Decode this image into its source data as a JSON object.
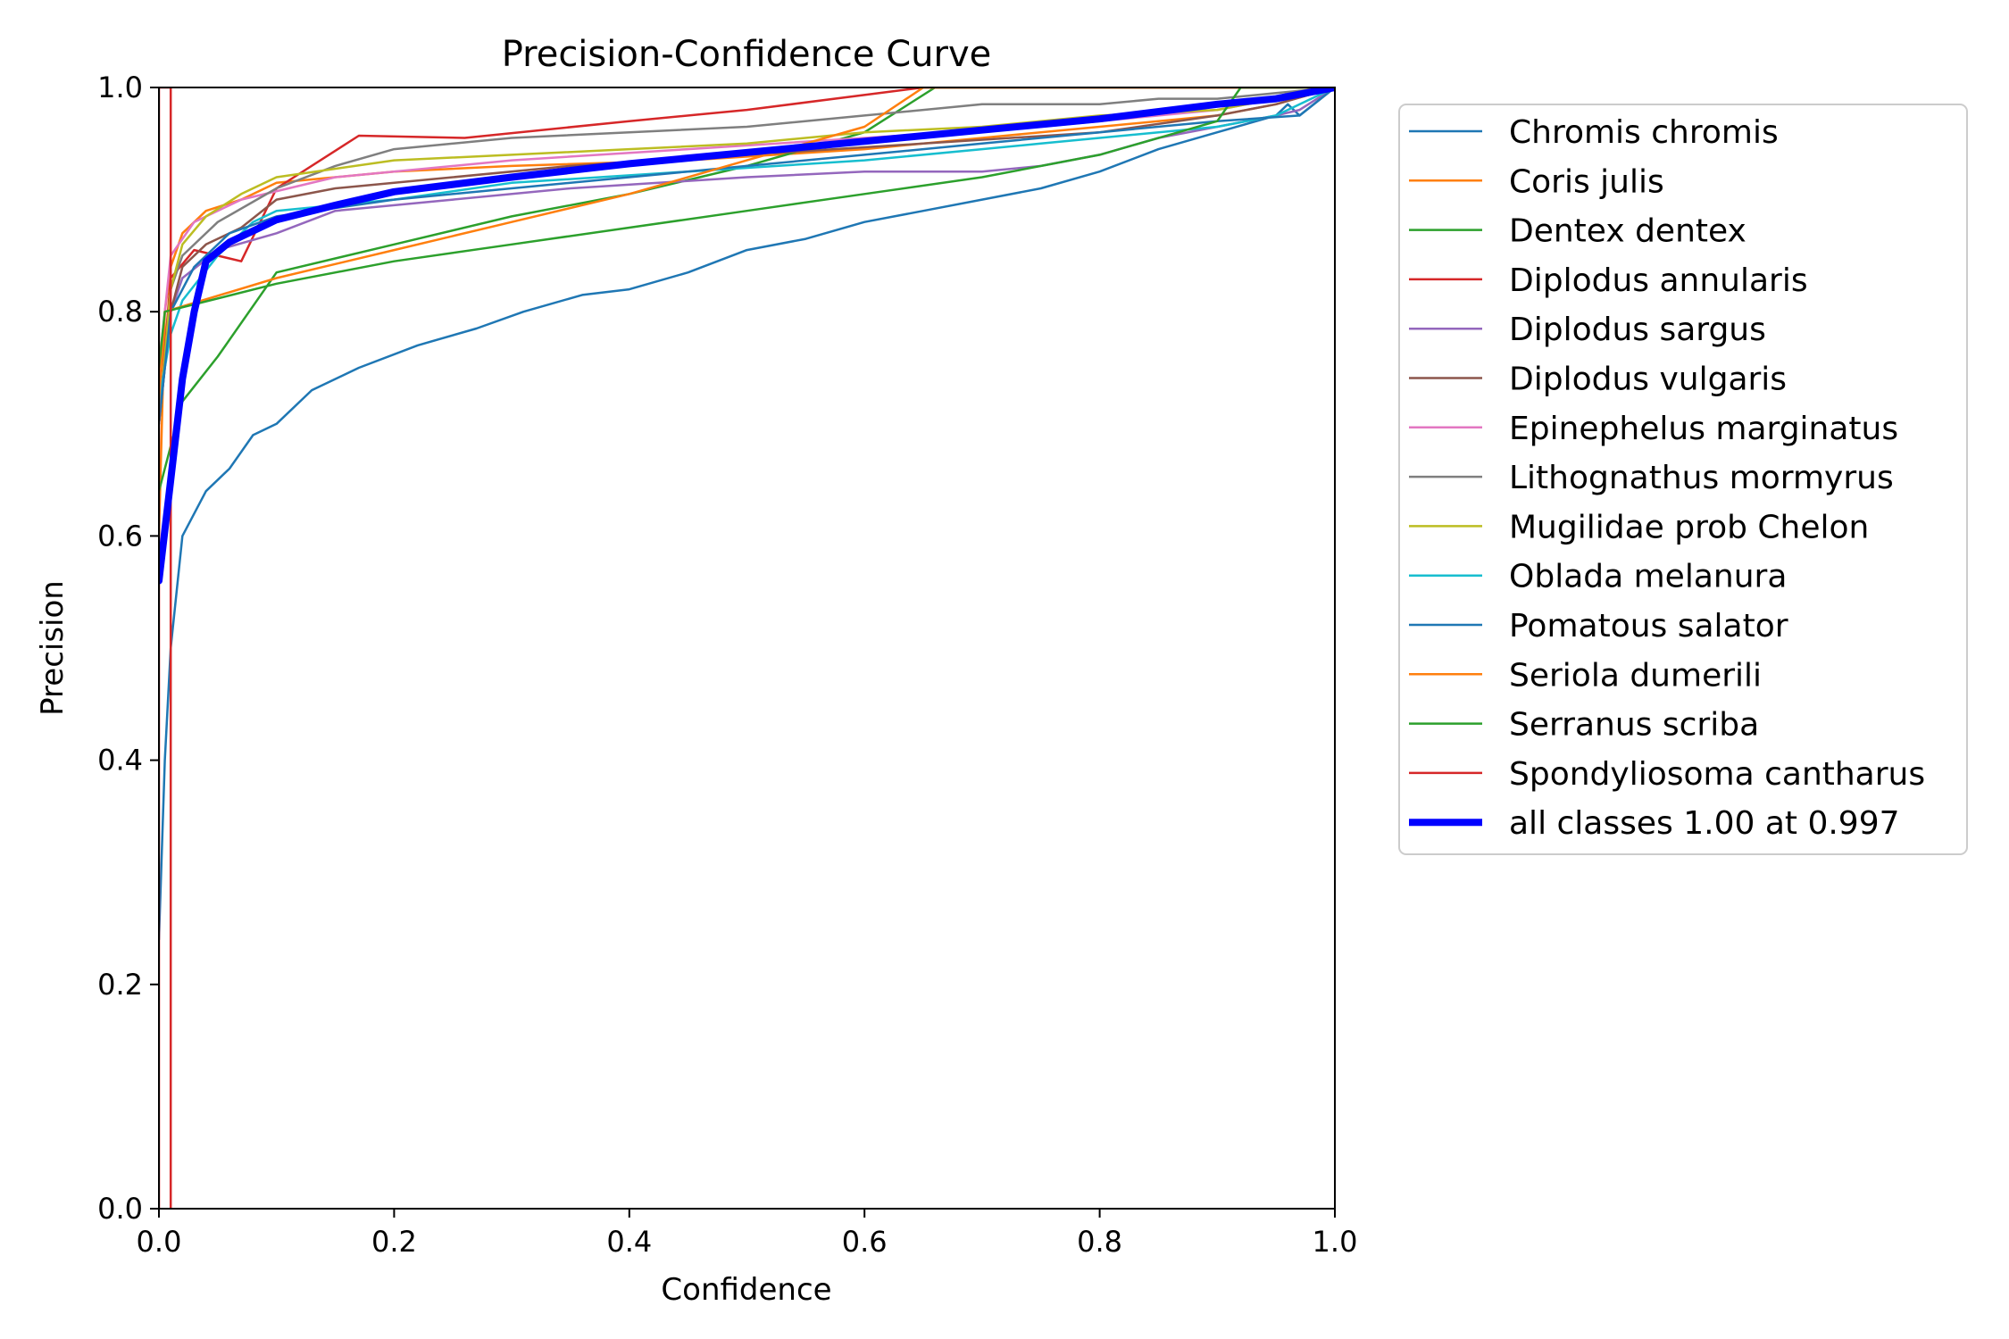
{
  "chart_data": {
    "type": "line",
    "title": "Precision-Confidence Curve",
    "xlabel": "Confidence",
    "ylabel": "Precision",
    "xlim": [
      0,
      1
    ],
    "ylim": [
      0,
      1
    ],
    "x_ticks": [
      "0.0",
      "0.2",
      "0.4",
      "0.6",
      "0.8",
      "1.0"
    ],
    "y_ticks": [
      "0.0",
      "0.2",
      "0.4",
      "0.6",
      "0.8",
      "1.0"
    ],
    "grid": false,
    "legend_position": "outside-right",
    "series": [
      {
        "name": "Chromis chromis",
        "color": "#1f77b4",
        "width": 2.5,
        "points": [
          [
            0.0,
            0.24
          ],
          [
            0.005,
            0.4
          ],
          [
            0.01,
            0.5
          ],
          [
            0.02,
            0.6
          ],
          [
            0.04,
            0.64
          ],
          [
            0.06,
            0.66
          ],
          [
            0.08,
            0.69
          ],
          [
            0.1,
            0.7
          ],
          [
            0.13,
            0.73
          ],
          [
            0.17,
            0.75
          ],
          [
            0.22,
            0.77
          ],
          [
            0.27,
            0.785
          ],
          [
            0.31,
            0.8
          ],
          [
            0.36,
            0.815
          ],
          [
            0.4,
            0.82
          ],
          [
            0.45,
            0.835
          ],
          [
            0.5,
            0.855
          ],
          [
            0.55,
            0.865
          ],
          [
            0.6,
            0.88
          ],
          [
            0.65,
            0.89
          ],
          [
            0.7,
            0.9
          ],
          [
            0.75,
            0.91
          ],
          [
            0.8,
            0.925
          ],
          [
            0.85,
            0.945
          ],
          [
            0.9,
            0.96
          ],
          [
            0.95,
            0.975
          ],
          [
            0.96,
            0.985
          ],
          [
            0.97,
            0.975
          ],
          [
            1.0,
            1.0
          ]
        ]
      },
      {
        "name": "Coris julis",
        "color": "#ff7f0e",
        "width": 2.5,
        "points": [
          [
            0.0,
            0.6
          ],
          [
            0.005,
            0.8
          ],
          [
            0.01,
            0.84
          ],
          [
            0.02,
            0.87
          ],
          [
            0.04,
            0.89
          ],
          [
            0.07,
            0.9
          ],
          [
            0.1,
            0.915
          ],
          [
            0.2,
            0.925
          ],
          [
            0.3,
            0.93
          ],
          [
            0.45,
            0.935
          ],
          [
            0.6,
            0.945
          ],
          [
            0.7,
            0.955
          ],
          [
            0.8,
            0.965
          ],
          [
            0.9,
            0.975
          ],
          [
            0.95,
            0.985
          ],
          [
            1.0,
            1.0
          ]
        ]
      },
      {
        "name": "Dentex dentex",
        "color": "#2ca02c",
        "width": 2.5,
        "points": [
          [
            0.0,
            0.64
          ],
          [
            0.02,
            0.72
          ],
          [
            0.05,
            0.76
          ],
          [
            0.1,
            0.835
          ],
          [
            0.2,
            0.86
          ],
          [
            0.3,
            0.885
          ],
          [
            0.4,
            0.905
          ],
          [
            0.5,
            0.93
          ],
          [
            0.6,
            0.96
          ],
          [
            0.66,
            1.0
          ],
          [
            1.0,
            1.0
          ]
        ]
      },
      {
        "name": "Diplodus annularis",
        "color": "#d62728",
        "width": 2.5,
        "points": [
          [
            0.0,
            0.7
          ],
          [
            0.01,
            0.83
          ],
          [
            0.03,
            0.855
          ],
          [
            0.07,
            0.845
          ],
          [
            0.1,
            0.91
          ],
          [
            0.17,
            0.957
          ],
          [
            0.26,
            0.955
          ],
          [
            0.4,
            0.97
          ],
          [
            0.5,
            0.98
          ],
          [
            0.65,
            1.0
          ],
          [
            1.0,
            1.0
          ]
        ]
      },
      {
        "name": "Diplodus sargus",
        "color": "#9467bd",
        "width": 2.5,
        "points": [
          [
            0.0,
            0.7
          ],
          [
            0.01,
            0.8
          ],
          [
            0.02,
            0.83
          ],
          [
            0.05,
            0.855
          ],
          [
            0.1,
            0.87
          ],
          [
            0.15,
            0.89
          ],
          [
            0.25,
            0.9
          ],
          [
            0.35,
            0.91
          ],
          [
            0.5,
            0.92
          ],
          [
            0.6,
            0.925
          ],
          [
            0.7,
            0.925
          ],
          [
            0.75,
            0.93
          ],
          [
            0.8,
            0.94
          ],
          [
            0.85,
            0.955
          ],
          [
            0.9,
            0.965
          ],
          [
            0.95,
            0.975
          ],
          [
            0.97,
            0.98
          ],
          [
            1.0,
            1.0
          ]
        ]
      },
      {
        "name": "Diplodus vulgaris",
        "color": "#8c564b",
        "width": 2.5,
        "points": [
          [
            0.0,
            0.7
          ],
          [
            0.01,
            0.8
          ],
          [
            0.02,
            0.84
          ],
          [
            0.04,
            0.86
          ],
          [
            0.07,
            0.875
          ],
          [
            0.1,
            0.9
          ],
          [
            0.15,
            0.91
          ],
          [
            0.25,
            0.92
          ],
          [
            0.35,
            0.93
          ],
          [
            0.5,
            0.94
          ],
          [
            0.65,
            0.95
          ],
          [
            0.8,
            0.96
          ],
          [
            0.9,
            0.975
          ],
          [
            0.95,
            0.985
          ],
          [
            1.0,
            1.0
          ]
        ]
      },
      {
        "name": "Epinephelus marginatus",
        "color": "#e377c2",
        "width": 2.5,
        "points": [
          [
            0.0,
            0.75
          ],
          [
            0.01,
            0.85
          ],
          [
            0.03,
            0.88
          ],
          [
            0.07,
            0.9
          ],
          [
            0.15,
            0.92
          ],
          [
            0.3,
            0.935
          ],
          [
            0.45,
            0.945
          ],
          [
            0.6,
            0.955
          ],
          [
            0.75,
            0.965
          ],
          [
            0.9,
            0.98
          ],
          [
            1.0,
            1.0
          ]
        ]
      },
      {
        "name": "Lithognathus mormyrus",
        "color": "#7f7f7f",
        "width": 2.5,
        "points": [
          [
            0.0,
            0.7
          ],
          [
            0.01,
            0.82
          ],
          [
            0.02,
            0.85
          ],
          [
            0.05,
            0.88
          ],
          [
            0.1,
            0.91
          ],
          [
            0.15,
            0.93
          ],
          [
            0.2,
            0.945
          ],
          [
            0.3,
            0.955
          ],
          [
            0.4,
            0.96
          ],
          [
            0.5,
            0.965
          ],
          [
            0.6,
            0.975
          ],
          [
            0.7,
            0.985
          ],
          [
            0.8,
            0.985
          ],
          [
            0.85,
            0.99
          ],
          [
            0.9,
            0.99
          ],
          [
            0.95,
            0.995
          ],
          [
            1.0,
            1.0
          ]
        ]
      },
      {
        "name": "Mugilidae prob Chelon",
        "color": "#bcbd22",
        "width": 2.5,
        "points": [
          [
            0.0,
            0.7
          ],
          [
            0.01,
            0.82
          ],
          [
            0.02,
            0.86
          ],
          [
            0.04,
            0.885
          ],
          [
            0.07,
            0.905
          ],
          [
            0.1,
            0.92
          ],
          [
            0.2,
            0.935
          ],
          [
            0.3,
            0.94
          ],
          [
            0.4,
            0.945
          ],
          [
            0.5,
            0.95
          ],
          [
            0.6,
            0.96
          ],
          [
            0.7,
            0.965
          ],
          [
            0.8,
            0.975
          ],
          [
            0.9,
            0.98
          ],
          [
            0.95,
            0.99
          ],
          [
            1.0,
            1.0
          ]
        ]
      },
      {
        "name": "Oblada melanura",
        "color": "#17becf",
        "width": 2.5,
        "points": [
          [
            0.0,
            0.72
          ],
          [
            0.01,
            0.78
          ],
          [
            0.02,
            0.81
          ],
          [
            0.05,
            0.85
          ],
          [
            0.08,
            0.88
          ],
          [
            0.1,
            0.89
          ],
          [
            0.15,
            0.895
          ],
          [
            0.2,
            0.9
          ],
          [
            0.3,
            0.915
          ],
          [
            0.45,
            0.925
          ],
          [
            0.6,
            0.935
          ],
          [
            0.7,
            0.945
          ],
          [
            0.75,
            0.95
          ],
          [
            0.8,
            0.955
          ],
          [
            0.9,
            0.965
          ],
          [
            0.95,
            0.975
          ],
          [
            1.0,
            1.0
          ]
        ]
      },
      {
        "name": "Pomatous salator",
        "color": "#1f77b4",
        "width": 2.5,
        "points": [
          [
            0.0,
            0.7
          ],
          [
            0.01,
            0.8
          ],
          [
            0.03,
            0.84
          ],
          [
            0.06,
            0.87
          ],
          [
            0.1,
            0.885
          ],
          [
            0.2,
            0.9
          ],
          [
            0.3,
            0.91
          ],
          [
            0.4,
            0.92
          ],
          [
            0.5,
            0.93
          ],
          [
            0.6,
            0.94
          ],
          [
            0.7,
            0.95
          ],
          [
            0.8,
            0.96
          ],
          [
            0.9,
            0.97
          ],
          [
            0.97,
            0.975
          ],
          [
            1.0,
            1.0
          ]
        ]
      },
      {
        "name": "Seriola dumerili",
        "color": "#ff7f0e",
        "width": 2.5,
        "points": [
          [
            0.0,
            0.72
          ],
          [
            0.005,
            0.8
          ],
          [
            0.1,
            0.83
          ],
          [
            0.2,
            0.855
          ],
          [
            0.3,
            0.88
          ],
          [
            0.4,
            0.905
          ],
          [
            0.5,
            0.935
          ],
          [
            0.6,
            0.965
          ],
          [
            0.65,
            1.0
          ],
          [
            1.0,
            1.0
          ]
        ]
      },
      {
        "name": "Serranus scriba",
        "color": "#2ca02c",
        "width": 2.5,
        "points": [
          [
            0.0,
            0.75
          ],
          [
            0.005,
            0.8
          ],
          [
            0.1,
            0.825
          ],
          [
            0.2,
            0.845
          ],
          [
            0.3,
            0.86
          ],
          [
            0.4,
            0.875
          ],
          [
            0.5,
            0.89
          ],
          [
            0.6,
            0.905
          ],
          [
            0.7,
            0.92
          ],
          [
            0.8,
            0.94
          ],
          [
            0.9,
            0.97
          ],
          [
            0.92,
            1.0
          ],
          [
            1.0,
            1.0
          ]
        ]
      },
      {
        "name": "Spondyliosoma cantharus",
        "color": "#d62728",
        "width": 2.5,
        "points": [
          [
            0.0,
            0.0
          ],
          [
            0.0,
            1.0
          ],
          [
            0.01,
            1.0
          ],
          [
            0.01,
            0.0
          ]
        ]
      },
      {
        "name": "all classes 1.00 at 0.997",
        "color": "#0000ff",
        "width": 8,
        "points": [
          [
            0.0,
            0.56
          ],
          [
            0.01,
            0.65
          ],
          [
            0.02,
            0.74
          ],
          [
            0.03,
            0.8
          ],
          [
            0.04,
            0.845
          ],
          [
            0.06,
            0.862
          ],
          [
            0.1,
            0.882
          ],
          [
            0.15,
            0.895
          ],
          [
            0.2,
            0.907
          ],
          [
            0.3,
            0.92
          ],
          [
            0.4,
            0.932
          ],
          [
            0.5,
            0.942
          ],
          [
            0.6,
            0.952
          ],
          [
            0.7,
            0.962
          ],
          [
            0.8,
            0.972
          ],
          [
            0.9,
            0.985
          ],
          [
            0.95,
            0.99
          ],
          [
            1.0,
            1.0
          ]
        ]
      }
    ]
  }
}
